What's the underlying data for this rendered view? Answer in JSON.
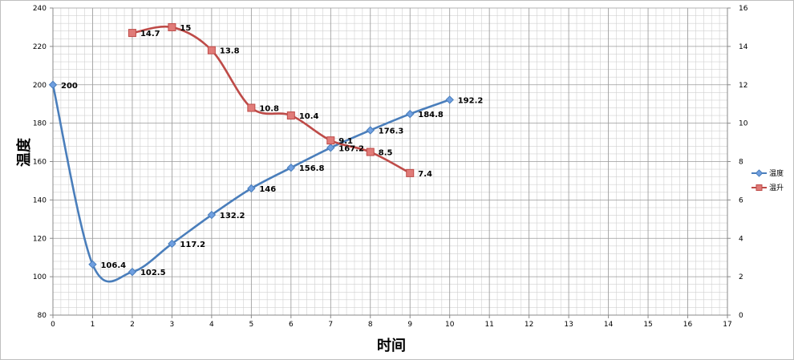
{
  "chart_data": {
    "type": "line",
    "xlabel": "时间",
    "ylabel": "温度",
    "x_ticks": [
      0,
      1,
      2,
      3,
      4,
      5,
      6,
      7,
      8,
      9,
      10,
      11,
      12,
      13,
      14,
      15,
      16,
      17
    ],
    "xlim": [
      0,
      17
    ],
    "ylim": [
      80,
      240
    ],
    "y_ticks": [
      80,
      100,
      120,
      140,
      160,
      180,
      200,
      220,
      240
    ],
    "y2lim": [
      0,
      16
    ],
    "y2_ticks": [
      0,
      2,
      4,
      6,
      8,
      10,
      12,
      14,
      16
    ],
    "grid": true,
    "legend_position": "right",
    "series": [
      {
        "name": "温度",
        "axis": "left",
        "color": "#4a7ebb",
        "marker_color": "#6f9fe0",
        "marker": "diamond",
        "x": [
          0,
          1,
          2,
          3,
          4,
          5,
          6,
          7,
          8,
          9,
          10
        ],
        "y": [
          200,
          106.4,
          102.5,
          117.2,
          132.2,
          146,
          156.8,
          167.2,
          176.3,
          184.8,
          192.2
        ],
        "labels": [
          "200",
          "106.4",
          "102.5",
          "117.2",
          "132.2",
          "146",
          "156.8",
          "167.2",
          "176.3",
          "184.8",
          "192.2"
        ]
      },
      {
        "name": "温升",
        "axis": "right",
        "color": "#be4b48",
        "marker_color": "#e07b78",
        "marker": "square",
        "x": [
          2,
          3,
          4,
          5,
          6,
          7,
          8,
          9
        ],
        "y": [
          14.7,
          15,
          13.8,
          10.8,
          10.4,
          9.1,
          8.5,
          7.4
        ],
        "labels": [
          "14.7",
          "15",
          "13.8",
          "10.8",
          "10.4",
          "9.1",
          "8.5",
          "7.4"
        ]
      }
    ]
  }
}
